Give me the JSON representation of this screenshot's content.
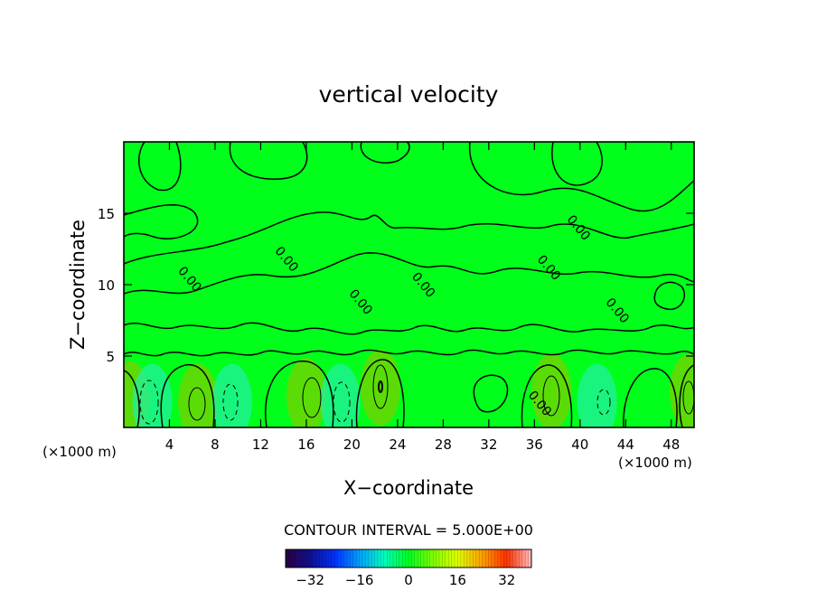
{
  "chart_data": {
    "type": "heatmap",
    "title": "vertical velocity",
    "xlabel": "X−coordinate",
    "ylabel": "Z−coordinate",
    "x_unit_left": "(×1000 m)",
    "x_unit_right": "(×1000 m)",
    "xlim": [
      0,
      50
    ],
    "ylim": [
      0,
      20
    ],
    "x_ticks": [
      4,
      8,
      12,
      16,
      20,
      24,
      28,
      32,
      36,
      40,
      44,
      48
    ],
    "y_ticks": [
      5,
      10,
      15
    ],
    "field_background_color": "#00ff1a",
    "contour_labels": [
      {
        "text": "0.00",
        "x": 5.5,
        "z": 10.2
      },
      {
        "text": "0.00",
        "x": 14.0,
        "z": 11.6
      },
      {
        "text": "0.00",
        "x": 20.5,
        "z": 8.6
      },
      {
        "text": "0.00",
        "x": 26.0,
        "z": 9.8
      },
      {
        "text": "0.00",
        "x": 37.0,
        "z": 11.0
      },
      {
        "text": "0.00",
        "x": 39.6,
        "z": 13.8
      },
      {
        "text": "0.00",
        "x": 43.0,
        "z": 8.0
      },
      {
        "text": "0.00",
        "x": 36.2,
        "z": 1.5
      }
    ],
    "anomalies": [
      {
        "x": 0.5,
        "z": 2.0,
        "sign": 1
      },
      {
        "x": 2.5,
        "z": 1.8,
        "sign": -1
      },
      {
        "x": 6.5,
        "z": 1.8,
        "sign": 1
      },
      {
        "x": 9.5,
        "z": 1.8,
        "sign": -1
      },
      {
        "x": 16.0,
        "z": 2.2,
        "sign": 1
      },
      {
        "x": 19.0,
        "z": 1.8,
        "sign": -1
      },
      {
        "x": 22.5,
        "z": 2.8,
        "sign": 1
      },
      {
        "x": 37.5,
        "z": 2.5,
        "sign": 1
      },
      {
        "x": 41.5,
        "z": 1.8,
        "sign": -1
      },
      {
        "x": 49.6,
        "z": 2.5,
        "sign": 1
      }
    ],
    "contour_interval_text": "CONTOUR INTERVAL =  5.000E+00",
    "colorbar": {
      "min": -40,
      "max": 40,
      "ticks": [
        -32,
        -16,
        0,
        16,
        32
      ],
      "stops": [
        {
          "v": -40,
          "color": "#2a0040"
        },
        {
          "v": -32,
          "color": "#101090"
        },
        {
          "v": -24,
          "color": "#0030ff"
        },
        {
          "v": -16,
          "color": "#00a0ff"
        },
        {
          "v": -8,
          "color": "#00ffc0"
        },
        {
          "v": 0,
          "color": "#00ff20"
        },
        {
          "v": 8,
          "color": "#80ff00"
        },
        {
          "v": 16,
          "color": "#e0ff00"
        },
        {
          "v": 24,
          "color": "#ffa000"
        },
        {
          "v": 32,
          "color": "#ff3000"
        },
        {
          "v": 40,
          "color": "#ffc0c0"
        }
      ]
    }
  }
}
